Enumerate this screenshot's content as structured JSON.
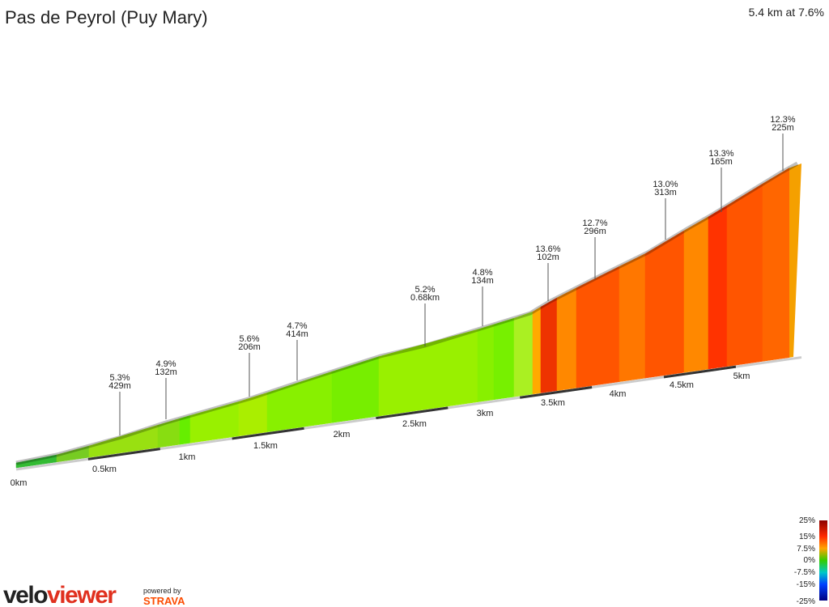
{
  "header": {
    "title": "Pas de Peyrol (Puy Mary)",
    "summary": "5.4 km at 7.6%"
  },
  "annotations": [
    {
      "grade": "5.3%",
      "length": "429m"
    },
    {
      "grade": "4.9%",
      "length": "132m"
    },
    {
      "grade": "5.6%",
      "length": "206m"
    },
    {
      "grade": "4.7%",
      "length": "414m"
    },
    {
      "grade": "5.2%",
      "length": "0.68km"
    },
    {
      "grade": "4.8%",
      "length": "134m"
    },
    {
      "grade": "13.6%",
      "length": "102m"
    },
    {
      "grade": "12.7%",
      "length": "296m"
    },
    {
      "grade": "13.0%",
      "length": "313m"
    },
    {
      "grade": "13.3%",
      "length": "165m"
    },
    {
      "grade": "12.3%",
      "length": "225m"
    }
  ],
  "distance_labels": [
    "0km",
    "0.5km",
    "1km",
    "1.5km",
    "2km",
    "2.5km",
    "3km",
    "3.5km",
    "4km",
    "4.5km",
    "5km"
  ],
  "legend": {
    "labels": [
      "25%",
      "15%",
      "7.5%",
      "0%",
      "-7.5%",
      "-15%",
      "-25%"
    ]
  },
  "branding": {
    "logo_left": "velo",
    "logo_right": "viewer",
    "powered_by": "powered by",
    "strava": "STRAVA"
  }
}
